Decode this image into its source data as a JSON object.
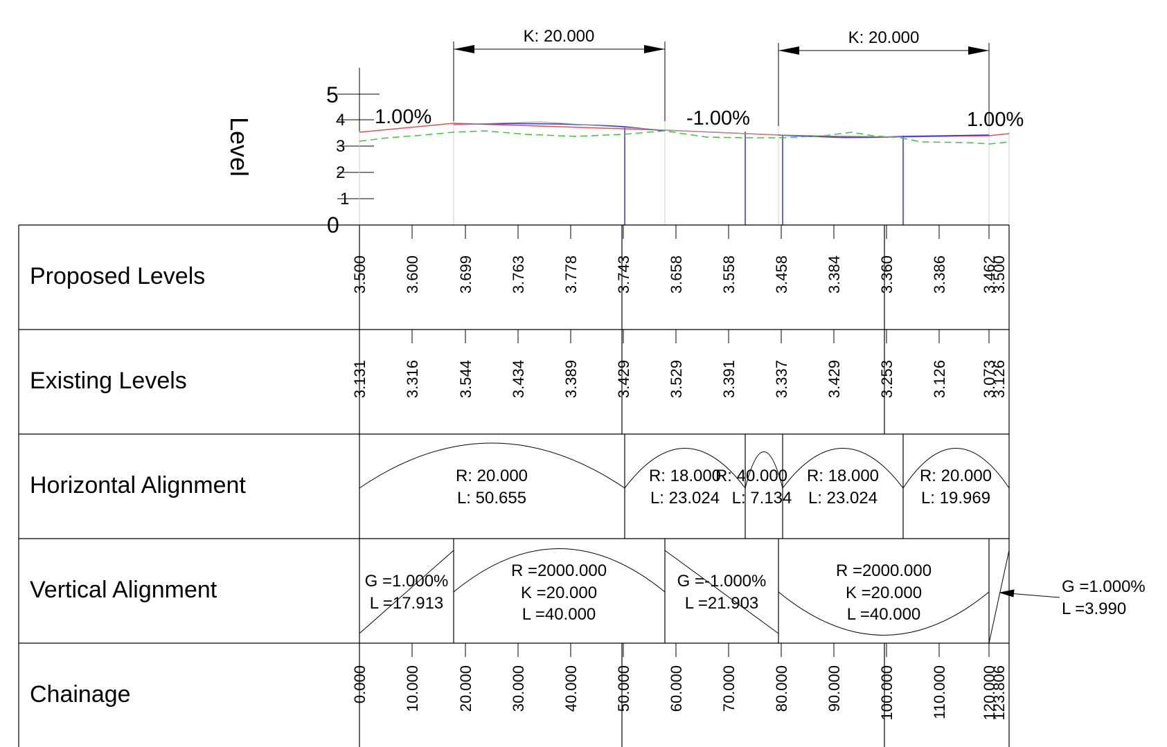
{
  "axis": {
    "title": "Level",
    "labels": [
      "0",
      "1",
      "2",
      "3",
      "4",
      "5"
    ]
  },
  "dimensions": [
    {
      "label": "K: 20.000"
    },
    {
      "label": "K: 20.000"
    }
  ],
  "grades": [
    "1.00%",
    "-1.00%",
    "1.00%"
  ],
  "rows": {
    "proposed_levels": "Proposed Levels",
    "existing_levels": "Existing Levels",
    "horizontal_alignment": "Horizontal Alignment",
    "vertical_alignment": "Vertical Alignment",
    "chainage": "Chainage"
  },
  "proposed_values": [
    "3.500",
    "3.600",
    "3.699",
    "3.763",
    "3.778",
    "3.743",
    "3.658",
    "3.558",
    "3.458",
    "3.384",
    "3.360",
    "3.386",
    "3.462",
    "3.500"
  ],
  "existing_values": [
    "3.131",
    "3.316",
    "3.544",
    "3.434",
    "3.389",
    "3.429",
    "3.529",
    "3.391",
    "3.337",
    "3.429",
    "3.253",
    "3.126",
    "3.073",
    "3.126"
  ],
  "chainage_values": [
    "0.000",
    "10.000",
    "20.000",
    "30.000",
    "40.000",
    "50.000",
    "60.000",
    "70.000",
    "80.000",
    "90.000",
    "100.000",
    "110.000",
    "120.000",
    "123.806"
  ],
  "horizontal_segments": [
    {
      "r": "R: 20.000",
      "l": "L: 50.655"
    },
    {
      "r": "R: 18.000",
      "l": "L: 23.024"
    },
    {
      "r": "R: 40.000",
      "l": "L: 7.134"
    },
    {
      "r": "R: 18.000",
      "l": "L: 23.024"
    },
    {
      "r": "R: 20.000",
      "l": "L: 19.969"
    }
  ],
  "vertical_segments": [
    {
      "line1": "G =1.000%",
      "line2": "L =17.913"
    },
    {
      "line1": "R =2000.000",
      "line2": "K =20.000",
      "line3": "L =40.000"
    },
    {
      "line1": "G =-1.000%",
      "line2": "L =21.903"
    },
    {
      "line1": "R =2000.000",
      "line2": "K =20.000",
      "line3": "L =40.000"
    },
    {
      "line1": "G =1.000%",
      "line2": "L =3.990"
    }
  ]
}
